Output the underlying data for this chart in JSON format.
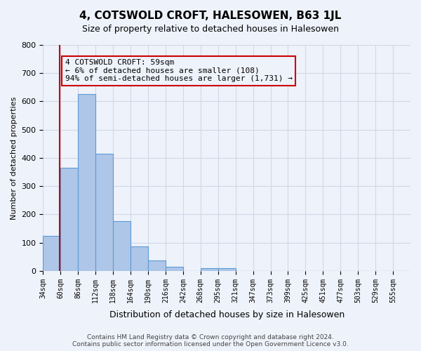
{
  "title": "4, COTSWOLD CROFT, HALESOWEN, B63 1JL",
  "subtitle": "Size of property relative to detached houses in Halesowen",
  "xlabel": "Distribution of detached houses by size in Halesowen",
  "ylabel": "Number of detached properties",
  "bin_labels": [
    "34sqm",
    "60sqm",
    "86sqm",
    "112sqm",
    "138sqm",
    "164sqm",
    "190sqm",
    "216sqm",
    "242sqm",
    "268sqm",
    "295sqm",
    "321sqm",
    "347sqm",
    "373sqm",
    "399sqm",
    "425sqm",
    "451sqm",
    "477sqm",
    "503sqm",
    "529sqm",
    "555sqm"
  ],
  "bar_heights": [
    125,
    365,
    625,
    415,
    177,
    86,
    37,
    15,
    0,
    10,
    10,
    0,
    0,
    0,
    0,
    0,
    0,
    0,
    0,
    0,
    0
  ],
  "bar_color": "#aec6e8",
  "bar_edge_color": "#5b9bd5",
  "grid_color": "#d0d8e8",
  "background_color": "#eef2fa",
  "vline_x": 59,
  "vline_color": "#cc0000",
  "annotation_text": "4 COTSWOLD CROFT: 59sqm\n← 6% of detached houses are smaller (108)\n94% of semi-detached houses are larger (1,731) →",
  "annotation_box_color": "#cc0000",
  "ylim": [
    0,
    800
  ],
  "yticks": [
    0,
    100,
    200,
    300,
    400,
    500,
    600,
    700,
    800
  ],
  "footer_line1": "Contains HM Land Registry data © Crown copyright and database right 2024.",
  "footer_line2": "Contains public sector information licensed under the Open Government Licence v3.0."
}
